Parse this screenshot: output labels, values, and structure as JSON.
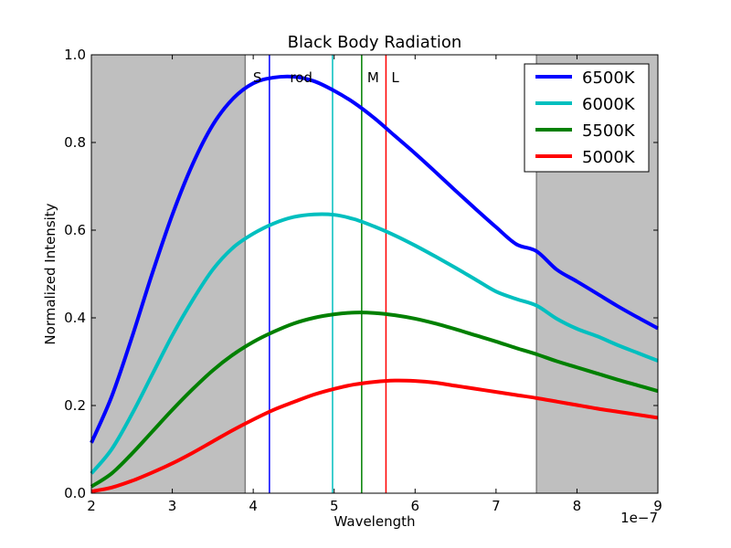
{
  "chart_data": {
    "type": "line",
    "title": "Black Body Radiation",
    "xlabel": "Wavelength",
    "ylabel": "Normalized Intensity",
    "x_offset_label": "1e−7",
    "xlim": [
      2,
      9
    ],
    "ylim": [
      0.0,
      1.0
    ],
    "xticks": [
      2,
      3,
      4,
      5,
      6,
      7,
      8,
      9
    ],
    "xtick_labels": [
      "2",
      "3",
      "4",
      "5",
      "6",
      "7",
      "8",
      "9"
    ],
    "yticks": [
      0.0,
      0.2,
      0.4,
      0.6,
      0.8,
      1.0
    ],
    "ytick_labels": [
      "0.0",
      "0.2",
      "0.4",
      "0.6",
      "0.8",
      "1.0"
    ],
    "shaded_regions": [
      {
        "from": 2.0,
        "to": 3.9,
        "color": "#bfbfbf"
      },
      {
        "from": 7.5,
        "to": 9.0,
        "color": "#bfbfbf"
      }
    ],
    "legend_position": "top-right",
    "series": [
      {
        "name": "6500K",
        "color": "#0000ff",
        "x": [
          2.0,
          2.25,
          2.5,
          2.75,
          3.0,
          3.25,
          3.5,
          3.75,
          4.0,
          4.25,
          4.5,
          4.75,
          5.0,
          5.25,
          5.5,
          5.75,
          6.0,
          6.25,
          6.5,
          6.75,
          7.0,
          7.25,
          7.5,
          7.75,
          8.0,
          8.25,
          8.5,
          8.75,
          9.0
        ],
        "y": [
          0.115,
          0.22,
          0.355,
          0.5,
          0.635,
          0.75,
          0.84,
          0.9,
          0.935,
          0.948,
          0.95,
          0.94,
          0.918,
          0.89,
          0.855,
          0.815,
          0.775,
          0.733,
          0.69,
          0.648,
          0.607,
          0.568,
          0.552,
          0.51,
          0.483,
          0.455,
          0.427,
          0.401,
          0.376
        ]
      },
      {
        "name": "6000K",
        "color": "#00bfbf",
        "x": [
          2.0,
          2.25,
          2.5,
          2.75,
          3.0,
          3.25,
          3.5,
          3.75,
          4.0,
          4.25,
          4.5,
          4.75,
          5.0,
          5.25,
          5.5,
          5.75,
          6.0,
          6.25,
          6.5,
          6.75,
          7.0,
          7.25,
          7.5,
          7.75,
          8.0,
          8.25,
          8.5,
          8.75,
          9.0
        ],
        "y": [
          0.045,
          0.1,
          0.18,
          0.27,
          0.36,
          0.44,
          0.51,
          0.56,
          0.592,
          0.615,
          0.63,
          0.636,
          0.635,
          0.625,
          0.608,
          0.588,
          0.565,
          0.54,
          0.514,
          0.487,
          0.46,
          0.443,
          0.428,
          0.398,
          0.375,
          0.358,
          0.338,
          0.32,
          0.302
        ]
      },
      {
        "name": "5500K",
        "color": "#008000",
        "x": [
          2.0,
          2.25,
          2.5,
          2.75,
          3.0,
          3.25,
          3.5,
          3.75,
          4.0,
          4.25,
          4.5,
          4.75,
          5.0,
          5.25,
          5.5,
          5.75,
          6.0,
          6.25,
          6.5,
          6.75,
          7.0,
          7.25,
          7.5,
          7.75,
          8.0,
          8.25,
          8.5,
          8.75,
          9.0
        ],
        "y": [
          0.015,
          0.045,
          0.09,
          0.14,
          0.19,
          0.237,
          0.28,
          0.316,
          0.345,
          0.368,
          0.387,
          0.4,
          0.408,
          0.412,
          0.411,
          0.406,
          0.398,
          0.387,
          0.374,
          0.36,
          0.346,
          0.331,
          0.317,
          0.301,
          0.287,
          0.273,
          0.259,
          0.246,
          0.233
        ]
      },
      {
        "name": "5000K",
        "color": "#ff0000",
        "x": [
          2.0,
          2.25,
          2.5,
          2.75,
          3.0,
          3.25,
          3.5,
          3.75,
          4.0,
          4.25,
          4.5,
          4.75,
          5.0,
          5.25,
          5.5,
          5.75,
          6.0,
          6.25,
          6.5,
          6.75,
          7.0,
          7.25,
          7.5,
          7.75,
          8.0,
          8.25,
          8.5,
          8.75,
          9.0
        ],
        "y": [
          0.004,
          0.013,
          0.028,
          0.047,
          0.068,
          0.092,
          0.118,
          0.144,
          0.168,
          0.19,
          0.208,
          0.225,
          0.238,
          0.248,
          0.254,
          0.257,
          0.256,
          0.252,
          0.245,
          0.238,
          0.231,
          0.224,
          0.217,
          0.209,
          0.201,
          0.193,
          0.186,
          0.179,
          0.172
        ]
      }
    ],
    "vertical_lines": [
      {
        "label": "S",
        "x": 4.2,
        "color": "#0000ff"
      },
      {
        "label": "rod",
        "x": 4.98,
        "color": "#00bfbf"
      },
      {
        "label": "M",
        "x": 5.34,
        "color": "#008000"
      },
      {
        "label": "L",
        "x": 5.64,
        "color": "#ff0000"
      }
    ],
    "shade_boundary_lines": [
      {
        "x": 3.9,
        "color": "#808080"
      },
      {
        "x": 7.5,
        "color": "#808080"
      }
    ],
    "grid": false
  }
}
